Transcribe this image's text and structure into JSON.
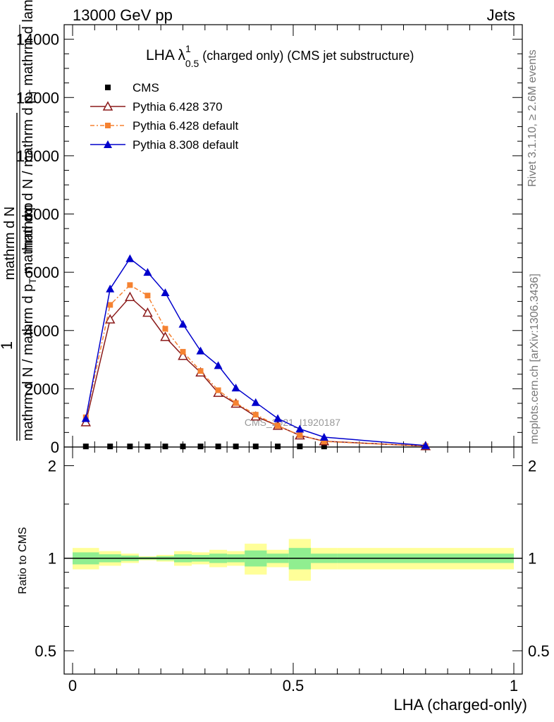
{
  "header": {
    "left": "13000 GeV pp",
    "right": "Jets"
  },
  "title": {
    "main": "LHA λ",
    "sup": "1",
    "sub": "0.5",
    "rest": " (charged only) (CMS jet substructure)"
  },
  "side_labels": {
    "rivet": "Rivet 3.1.10, ≥ 2.6M events",
    "mcplots": "mcplots.cern.ch [arXiv:1306.3436]"
  },
  "watermark": "CMS_2021_I1920187",
  "ratio_ylabel": "Ratio to CMS",
  "chart_data": [
    {
      "type": "line",
      "ylabel_parts": {
        "top": "1",
        "num": "mathrm d N / mathrm d p",
        "num_sub": "T",
        "num_rest": " mathrm d p",
        "den": "mathrm d N / mathrm d p",
        "den_sub": "T",
        "den_rest": " mathrm d lambda"
      },
      "ylabel_overlay": "mathrm d N",
      "xlim": [
        0,
        1
      ],
      "ylim": [
        0,
        14500
      ],
      "yticks": [
        0,
        2000,
        4000,
        6000,
        8000,
        10000,
        12000,
        14000
      ],
      "ytick_labels": [
        "0",
        "2000",
        "4000",
        "6000",
        "8000",
        "10000",
        "12000",
        "14000"
      ],
      "legend_position": "top-left",
      "series": [
        {
          "name": "CMS",
          "marker": "filled-square",
          "color": "#000000",
          "x": [
            0.03,
            0.085,
            0.13,
            0.17,
            0.21,
            0.25,
            0.29,
            0.33,
            0.37,
            0.415,
            0.465,
            0.515,
            0.57
          ],
          "y": [
            20,
            20,
            20,
            20,
            20,
            20,
            20,
            20,
            20,
            20,
            20,
            20,
            20
          ]
        },
        {
          "name": "Pythia 6.428 370",
          "marker": "open-triangle",
          "color": "#8b1a1a",
          "x": [
            0.03,
            0.085,
            0.13,
            0.17,
            0.21,
            0.25,
            0.29,
            0.33,
            0.37,
            0.415,
            0.465,
            0.515,
            0.57,
            0.8
          ],
          "y": [
            850,
            4380,
            5150,
            4610,
            3780,
            3130,
            2560,
            1860,
            1490,
            1050,
            730,
            400,
            200,
            30
          ]
        },
        {
          "name": "Pythia 6.428 default",
          "marker": "filled-square",
          "dash": "dashdot",
          "color": "#f58231",
          "x": [
            0.03,
            0.085,
            0.13,
            0.17,
            0.21,
            0.25,
            0.29,
            0.33,
            0.37,
            0.415,
            0.465,
            0.515,
            0.57,
            0.8
          ],
          "y": [
            1020,
            4880,
            5560,
            5200,
            4060,
            3270,
            2610,
            1950,
            1510,
            1110,
            730,
            410,
            190,
            30
          ]
        },
        {
          "name": "Pythia 8.308 default",
          "marker": "filled-triangle",
          "color": "#0000cc",
          "x": [
            0.03,
            0.085,
            0.13,
            0.17,
            0.21,
            0.25,
            0.29,
            0.33,
            0.37,
            0.415,
            0.465,
            0.515,
            0.57,
            0.8
          ],
          "y": [
            980,
            5430,
            6470,
            6000,
            5300,
            4220,
            3300,
            2800,
            2030,
            1530,
            980,
            620,
            340,
            50
          ]
        }
      ]
    },
    {
      "type": "area",
      "title": "Ratio to CMS",
      "xlabel": "LHA (charged-only)",
      "xlim": [
        0,
        1
      ],
      "ylim": [
        0.42,
        2.3
      ],
      "ylog": true,
      "xticks": [
        0,
        0.5,
        1
      ],
      "xtick_labels": [
        "0",
        "0.5",
        "1"
      ],
      "yticks": [
        0.5,
        1,
        2
      ],
      "ytick_labels": [
        "0.5",
        "1",
        "2"
      ],
      "reference_line": 1,
      "bin_edges": [
        0,
        0.06,
        0.11,
        0.15,
        0.19,
        0.23,
        0.27,
        0.31,
        0.35,
        0.39,
        0.44,
        0.49,
        0.54,
        0.6,
        1.0
      ],
      "uncertainty_bands": [
        {
          "name": "stat",
          "color": "#90ee90",
          "lo": [
            0.955,
            0.97,
            0.98,
            0.99,
            0.985,
            0.97,
            0.975,
            0.965,
            0.97,
            0.94,
            0.965,
            0.92,
            0.965,
            0.965
          ],
          "hi": [
            1.045,
            1.03,
            1.02,
            1.01,
            1.015,
            1.03,
            1.025,
            1.035,
            1.03,
            1.06,
            1.035,
            1.08,
            1.035,
            1.035
          ]
        },
        {
          "name": "syst",
          "color": "#ffff99",
          "lo": [
            0.92,
            0.945,
            0.965,
            0.985,
            0.975,
            0.945,
            0.955,
            0.935,
            0.945,
            0.885,
            0.935,
            0.845,
            0.92,
            0.92
          ],
          "hi": [
            1.08,
            1.055,
            1.035,
            1.015,
            1.025,
            1.055,
            1.045,
            1.065,
            1.055,
            1.115,
            1.065,
            1.155,
            1.08,
            1.08
          ]
        }
      ]
    }
  ]
}
